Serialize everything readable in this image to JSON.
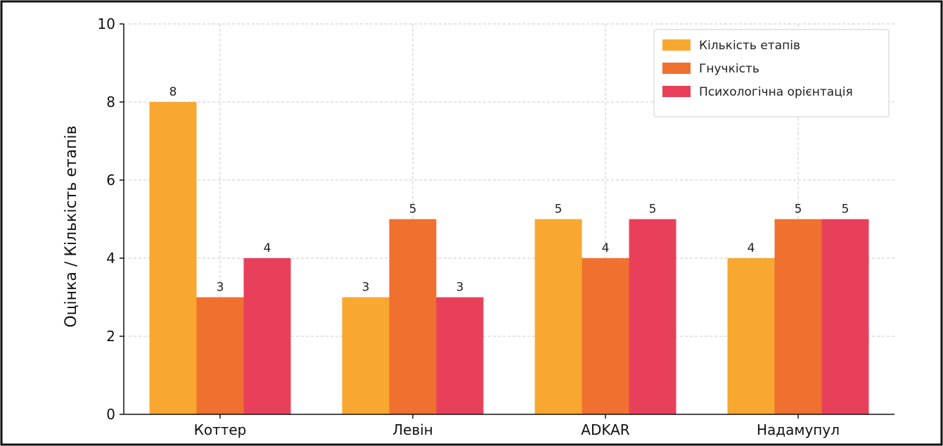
{
  "chart_data": {
    "type": "bar",
    "title": "",
    "xlabel": "",
    "ylabel": "Оцінка / Кількість етапів",
    "categories": [
      "Коттер",
      "Левін",
      "ADKAR",
      "Надамупул"
    ],
    "series": [
      {
        "name": "Кількість етапів",
        "color": "#f8a830",
        "values": [
          8,
          3,
          5,
          4
        ]
      },
      {
        "name": "Гнучкість",
        "color": "#f07030",
        "values": [
          3,
          5,
          4,
          5
        ]
      },
      {
        "name": "Психологічна орієнтація",
        "color": "#e8405a",
        "values": [
          4,
          3,
          5,
          5
        ]
      }
    ],
    "ylim": [
      0,
      10
    ],
    "yticks": [
      "0",
      "2",
      "4",
      "6",
      "8",
      "10"
    ],
    "grid": true,
    "legend_position": "top-right"
  }
}
